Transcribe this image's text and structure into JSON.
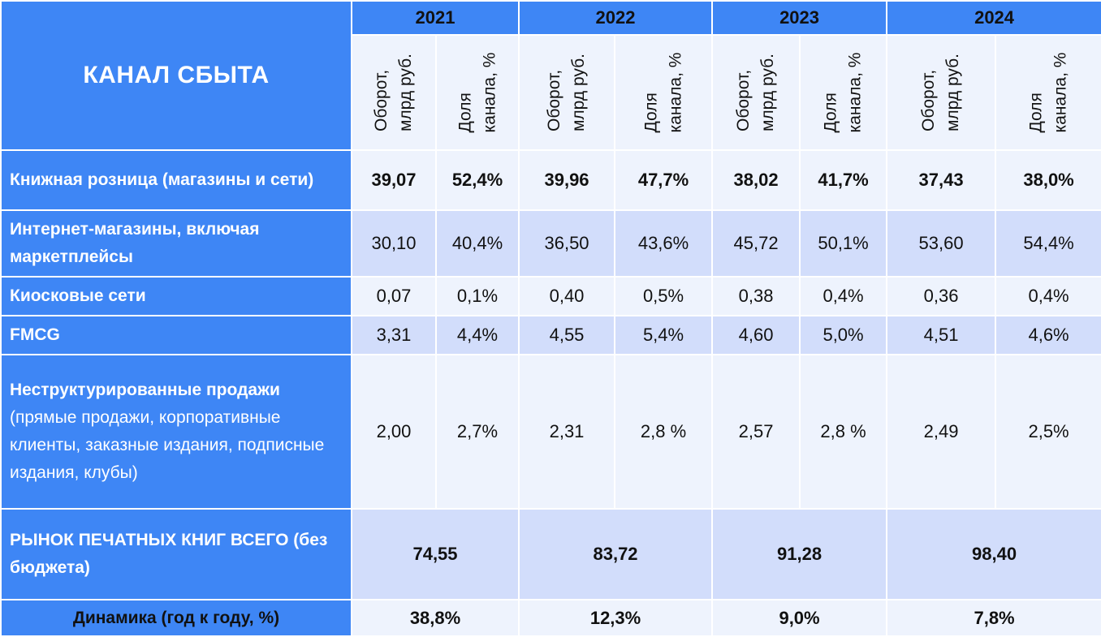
{
  "header": {
    "channel_title": "КАНАЛ СБЫТА",
    "years": [
      "2021",
      "2022",
      "2023",
      "2024"
    ],
    "sub_turnover": "Оборот,\nмлрд руб.",
    "sub_share": "Доля\nканала, %"
  },
  "rows": [
    {
      "label_bold": "Книжная розница (магазины и сети)",
      "label_rest": "",
      "values": [
        "39,07",
        "52,4%",
        "39,96",
        "47,7%",
        "38,02",
        "41,7%",
        "37,43",
        "38,0%"
      ]
    },
    {
      "label_bold": "Интернет-магазины, включая маркетплейсы",
      "label_rest": "",
      "values": [
        "30,10",
        "40,4%",
        "36,50",
        "43,6%",
        "45,72",
        "50,1%",
        "53,60",
        "54,4%"
      ]
    },
    {
      "label_bold": "Киосковые сети",
      "label_rest": "",
      "values": [
        "0,07",
        "0,1%",
        "0,40",
        "0,5%",
        "0,38",
        "0,4%",
        "0,36",
        "0,4%"
      ]
    },
    {
      "label_bold": "FMCG",
      "label_rest": "",
      "values": [
        "3,31",
        "4,4%",
        "4,55",
        "5,4%",
        "4,60",
        "5,0%",
        "4,51",
        "4,6%"
      ]
    },
    {
      "label_bold": "Неструктурированные продажи",
      "label_rest": " (прямые продажи, корпоративные клиенты, заказные издания, подписные издания, клубы)",
      "values": [
        "2,00",
        "2,7%",
        "2,31",
        "2,8 %",
        "2,57",
        "2,8 %",
        "2,49",
        "2,5%"
      ]
    }
  ],
  "total": {
    "label": "РЫНОК ПЕЧАТНЫХ КНИГ ВСЕГО (без бюджета)",
    "values": [
      "74,55",
      "83,72",
      "91,28",
      "98,40"
    ]
  },
  "dynamics": {
    "label": "Динамика (год к году, %)",
    "values": [
      "38,8%",
      "12,3%",
      "9,0%",
      "7,8%"
    ]
  },
  "colors": {
    "header_blue": "#3e86f5",
    "row_light": "#eef3fd",
    "row_dark": "#d2ddfb"
  }
}
